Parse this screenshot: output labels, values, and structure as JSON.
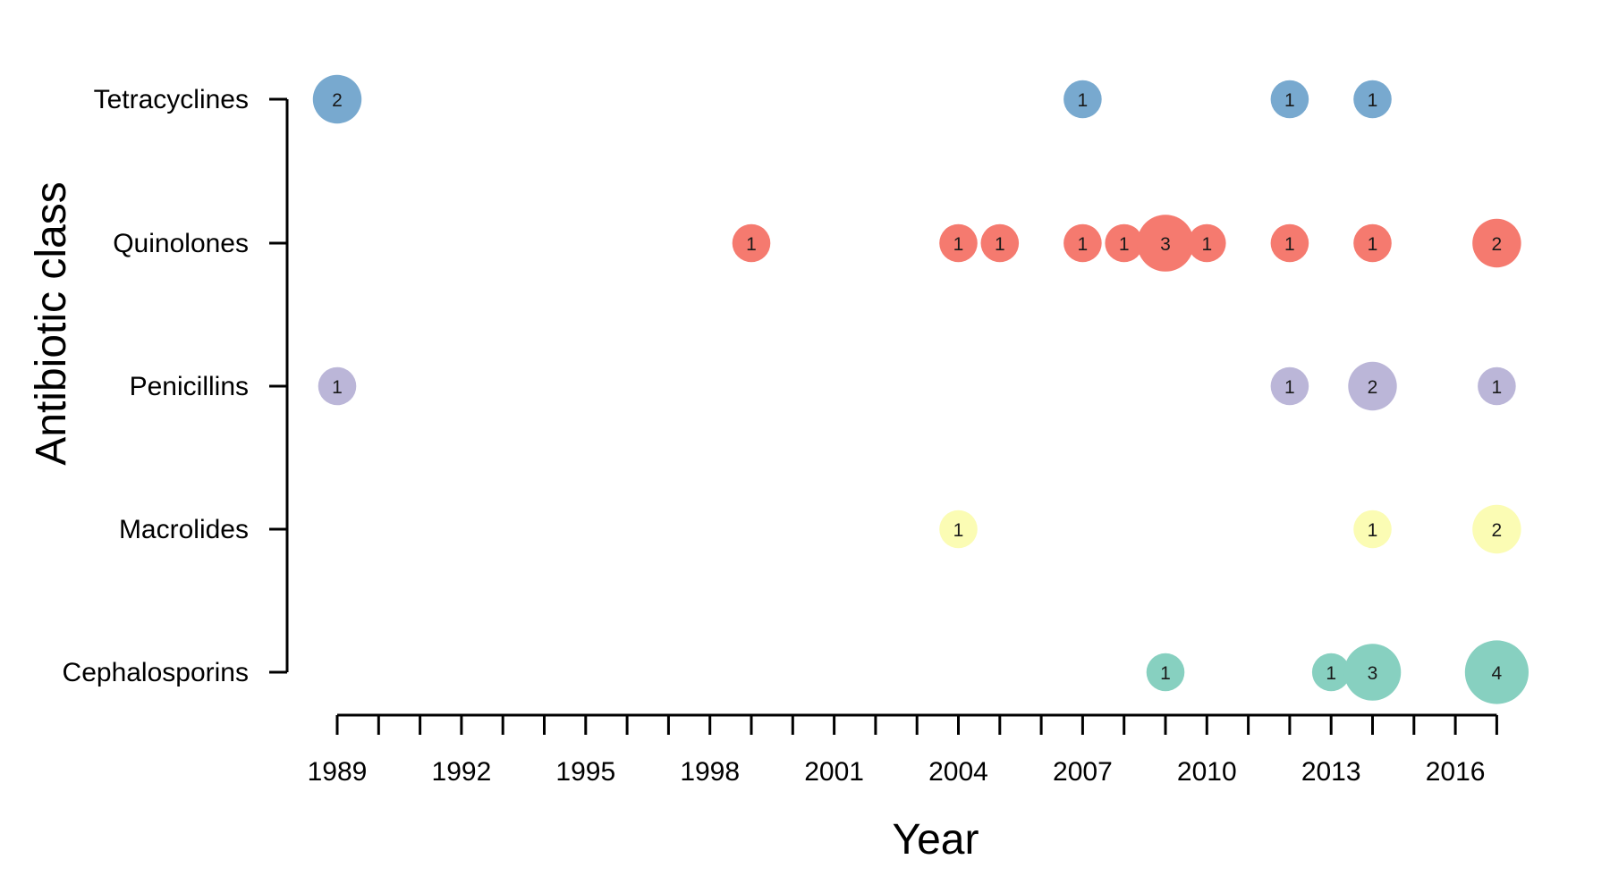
{
  "chart_data": {
    "type": "scatter",
    "xlabel": "Year",
    "ylabel": "Antibiotic class",
    "xlim": [
      1989,
      2017
    ],
    "x_ticks_labeled": [
      1989,
      1992,
      1995,
      1998,
      2001,
      2004,
      2007,
      2010,
      2013,
      2016
    ],
    "x_minor_ticks_every": 1,
    "categories": [
      "Tetracyclines",
      "Quinolones",
      "Penicillins",
      "Macrolides",
      "Cephalosporins"
    ],
    "grid": false,
    "legend": "none",
    "series": [
      {
        "name": "Tetracyclines",
        "color": "#78a9cf",
        "points": [
          {
            "x": 1989,
            "value": 2
          },
          {
            "x": 2007,
            "value": 1
          },
          {
            "x": 2012,
            "value": 1
          },
          {
            "x": 2014,
            "value": 1
          }
        ]
      },
      {
        "name": "Quinolones",
        "color": "#f57a6f",
        "points": [
          {
            "x": 1999,
            "value": 1
          },
          {
            "x": 2004,
            "value": 1
          },
          {
            "x": 2005,
            "value": 1
          },
          {
            "x": 2007,
            "value": 1
          },
          {
            "x": 2008,
            "value": 1
          },
          {
            "x": 2009,
            "value": 3
          },
          {
            "x": 2010,
            "value": 1
          },
          {
            "x": 2012,
            "value": 1
          },
          {
            "x": 2014,
            "value": 1
          },
          {
            "x": 2017,
            "value": 2
          }
        ]
      },
      {
        "name": "Penicillins",
        "color": "#bbb6d8",
        "points": [
          {
            "x": 1989,
            "value": 1
          },
          {
            "x": 2012,
            "value": 1
          },
          {
            "x": 2014,
            "value": 2
          },
          {
            "x": 2017,
            "value": 1
          }
        ]
      },
      {
        "name": "Macrolides",
        "color": "#fbfcb4",
        "points": [
          {
            "x": 2004,
            "value": 1
          },
          {
            "x": 2014,
            "value": 1
          },
          {
            "x": 2017,
            "value": 2
          }
        ]
      },
      {
        "name": "Cephalosporins",
        "color": "#87d0c0",
        "points": [
          {
            "x": 2009,
            "value": 1
          },
          {
            "x": 2013,
            "value": 1
          },
          {
            "x": 2014,
            "value": 3
          },
          {
            "x": 2017,
            "value": 4
          }
        ]
      }
    ]
  }
}
